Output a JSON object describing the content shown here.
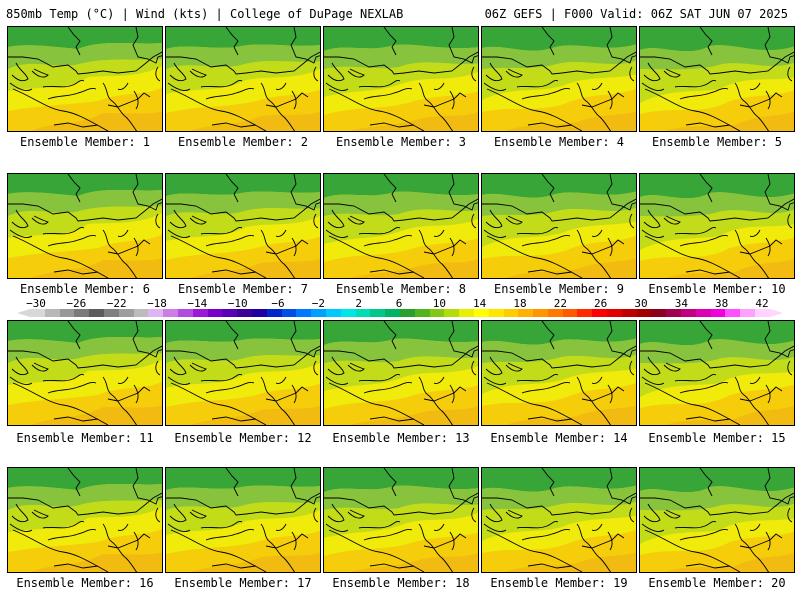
{
  "header": {
    "left": "850mb Temp (°C) | Wind (kts) | College of DuPage NEXLAB",
    "right": "06Z GEFS | F000 Valid: 06Z SAT JUN 07 2025"
  },
  "members": [
    "Ensemble Member: 1",
    "Ensemble Member: 2",
    "Ensemble Member: 3",
    "Ensemble Member: 4",
    "Ensemble Member: 5",
    "Ensemble Member: 6",
    "Ensemble Member: 7",
    "Ensemble Member: 8",
    "Ensemble Member: 9",
    "Ensemble Member: 10",
    "Ensemble Member: 11",
    "Ensemble Member: 12",
    "Ensemble Member: 13",
    "Ensemble Member: 14",
    "Ensemble Member: 15",
    "Ensemble Member: 16",
    "Ensemble Member: 17",
    "Ensemble Member: 18",
    "Ensemble Member: 19",
    "Ensemble Member: 20"
  ],
  "colorbar": {
    "tick_labels": [
      "−30",
      "−26",
      "−22",
      "−18",
      "−14",
      "−10",
      "−6",
      "−2",
      "2",
      "6",
      "10",
      "14",
      "18",
      "22",
      "26",
      "30",
      "34",
      "38",
      "42"
    ],
    "colors": [
      "#d8d8d8",
      "#b8b8b8",
      "#989898",
      "#7a7a7a",
      "#5c5c5c",
      "#7f7f7f",
      "#9e9e9e",
      "#bcbcbc",
      "#e0b4f0",
      "#cc7ee6",
      "#b24ce0",
      "#9a18d6",
      "#7a00c8",
      "#5a00b4",
      "#3c0096",
      "#2000a0",
      "#0028c8",
      "#0050e6",
      "#0078ff",
      "#00a0ff",
      "#00c8ff",
      "#00e6e6",
      "#00dcb4",
      "#00c88c",
      "#00b464",
      "#28a02c",
      "#50b41e",
      "#82c814",
      "#b4dc0a",
      "#e6f000",
      "#ffff00",
      "#ffe600",
      "#ffcc00",
      "#ffb000",
      "#ff9600",
      "#ff7800",
      "#ff5a00",
      "#ff2a00",
      "#ff0000",
      "#e00000",
      "#c00000",
      "#a00000",
      "#8c001e",
      "#a00050",
      "#c00080",
      "#dc00b4",
      "#f000dc",
      "#ff50ff",
      "#ffa0ff",
      "#ffd4ff"
    ]
  },
  "map_colors": {
    "dark_green": "#37a537",
    "mid_green": "#87c33c",
    "yellow_green": "#c3dc19",
    "yellow": "#f0eb0a",
    "orange_yellow": "#f5cd0a",
    "orange": "#f0b414",
    "boundary": "#000000"
  }
}
